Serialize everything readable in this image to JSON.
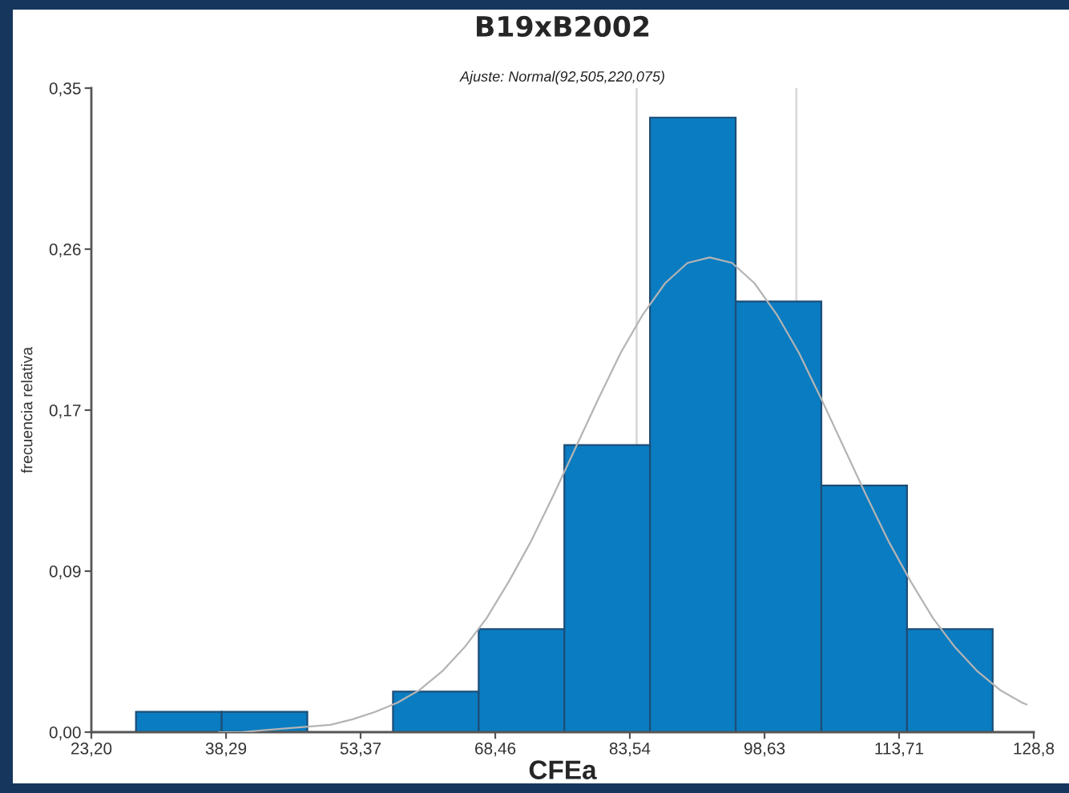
{
  "chart_data": {
    "type": "histogram",
    "title": "B19xB2002",
    "subtitle": "Ajuste: Normal(92,505,220,075)",
    "xlabel": "CFEa",
    "ylabel": "frecuencia relativa",
    "bins": [
      28.2,
      37.8,
      47.4,
      57.0,
      66.6,
      76.2,
      85.8,
      95.4,
      105.0,
      114.6,
      124.2
    ],
    "values": [
      0.011,
      0.011,
      0,
      0.022,
      0.056,
      0.156,
      0.334,
      0.234,
      0.134,
      0.056
    ],
    "color": "#0a7cc1",
    "series": [
      {
        "type": "line",
        "color": "#b4b4b4",
        "x": [
          37.5,
          40,
          42.5,
          45,
          47.5,
          50,
          52.5,
          55,
          57.5,
          60,
          62.5,
          65,
          67.5,
          70,
          72.5,
          75,
          77.5,
          80,
          82.5,
          85,
          87.5,
          90,
          92.5,
          95,
          97.5,
          100,
          102.5,
          105,
          107.5,
          110,
          112.5,
          115,
          117.5,
          120,
          122.5,
          125,
          127.5,
          128
        ],
        "values": [
          0.0,
          0.0,
          0.001,
          0.002,
          0.003,
          0.004,
          0.007,
          0.011,
          0.016,
          0.023,
          0.033,
          0.046,
          0.062,
          0.082,
          0.104,
          0.129,
          0.155,
          0.181,
          0.206,
          0.227,
          0.244,
          0.255,
          0.258,
          0.255,
          0.244,
          0.227,
          0.206,
          0.181,
          0.155,
          0.129,
          0.104,
          0.082,
          0.062,
          0.046,
          0.033,
          0.023,
          0.016,
          0.015
        ]
      }
    ],
    "xlim": [
      23.2,
      128.8
    ],
    "xticks": [
      {
        "value": 23.2,
        "label": "23,20"
      },
      {
        "value": 38.29,
        "label": "38,29"
      },
      {
        "value": 53.37,
        "label": "53,37"
      },
      {
        "value": 68.46,
        "label": "68,46"
      },
      {
        "value": 83.54,
        "label": "83,54"
      },
      {
        "value": 98.63,
        "label": "98,63"
      },
      {
        "value": 113.71,
        "label": "113,71"
      },
      {
        "value": 128.8,
        "label": "128,8"
      }
    ],
    "ylim": [
      0,
      0.35
    ],
    "yticks": [
      {
        "value": 0,
        "label": "0,00"
      },
      {
        "value": 0.0875,
        "label": "0,09"
      },
      {
        "value": 0.175,
        "label": "0,17"
      },
      {
        "value": 0.2625,
        "label": "0,26"
      },
      {
        "value": 0.35,
        "label": "0,35"
      }
    ],
    "ref_lines": [
      {
        "axis": "x",
        "value": 84.3,
        "color": "#dadada"
      },
      {
        "axis": "x",
        "value": 102.2,
        "color": "#dadada"
      }
    ]
  }
}
